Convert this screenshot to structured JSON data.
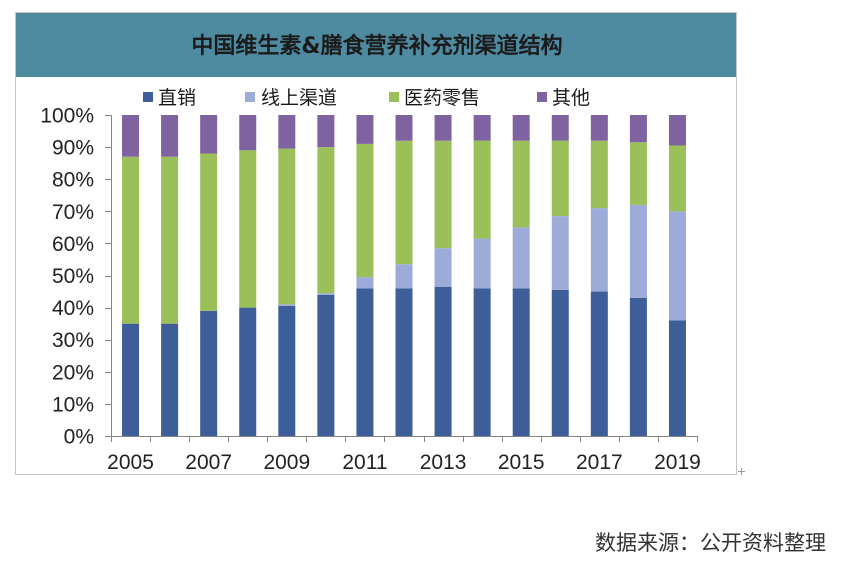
{
  "style": {
    "title_band_color": "#4e8ba1",
    "frame_color": "#c6c6c6",
    "axis_color": "#868686",
    "handle_color": "#9a9a9a"
  },
  "chart_data": {
    "type": "bar",
    "stacked": true,
    "title": "中国维生素&膳食营养补充剂渠道结构",
    "x": [
      2005,
      2006,
      2007,
      2008,
      2009,
      2010,
      2011,
      2012,
      2013,
      2014,
      2015,
      2016,
      2017,
      2018,
      2019
    ],
    "xtick_labels": [
      "2005",
      "2007",
      "2009",
      "2011",
      "2013",
      "2015",
      "2017",
      "2019"
    ],
    "yticks": [
      0,
      10,
      20,
      30,
      40,
      50,
      60,
      70,
      80,
      90,
      100
    ],
    "ytick_labels": [
      "0%",
      "10%",
      "20%",
      "30%",
      "40%",
      "50%",
      "60%",
      "70%",
      "80%",
      "90%",
      "100%"
    ],
    "ylim": [
      0,
      100
    ],
    "legend": "top",
    "grid": false,
    "series": [
      {
        "name": "直销",
        "color": "#3d5e99",
        "values": [
          35,
          35,
          39,
          40,
          40.5,
          44,
          46,
          46,
          46.5,
          46,
          46,
          45.5,
          45,
          43,
          36
        ]
      },
      {
        "name": "线上渠道",
        "color": "#9dabd8",
        "values": [
          0,
          0,
          0,
          0,
          0.5,
          0.5,
          3.5,
          7.5,
          12,
          15.5,
          19,
          23,
          26,
          29,
          34
        ]
      },
      {
        "name": "医药零售",
        "color": "#9bc05a",
        "values": [
          52,
          52,
          49,
          49,
          48.5,
          45.5,
          41.5,
          38.5,
          33.5,
          30.5,
          27,
          23.5,
          21,
          19.5,
          20.5
        ]
      },
      {
        "name": "其他",
        "color": "#7f63a1",
        "values": [
          13,
          13,
          12,
          11,
          10.5,
          10,
          9,
          8,
          8,
          8,
          8,
          8,
          8,
          8.5,
          9.5
        ]
      }
    ]
  },
  "source_note": "数据来源：公开资料整理"
}
